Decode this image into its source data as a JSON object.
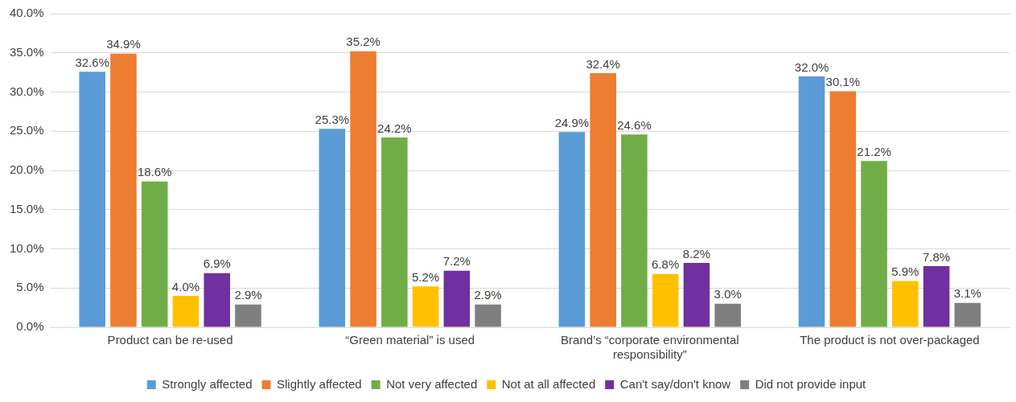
{
  "chart_data": {
    "type": "bar",
    "categories": [
      "Product can be re-used",
      "“Green material” is used",
      "Brand’s “corporate environmental responsibility”",
      "The product is not over-packaged"
    ],
    "series": [
      {
        "name": "Strongly affected",
        "color": "#5b9bd5",
        "values": [
          32.6,
          25.3,
          24.9,
          32.0
        ],
        "value_labels": [
          "32.6%",
          "25.3%",
          "24.9%",
          "32.0%"
        ]
      },
      {
        "name": "Slightly affected",
        "color": "#ed7d31",
        "values": [
          34.9,
          35.2,
          32.4,
          30.1
        ],
        "value_labels": [
          "34.9%",
          "35.2%",
          "32.4%",
          "30.1%"
        ]
      },
      {
        "name": "Not very affected",
        "color": "#70ad47",
        "values": [
          18.6,
          24.2,
          24.6,
          21.2
        ],
        "value_labels": [
          "18.6%",
          "24.2%",
          "24.6%",
          "21.2%"
        ]
      },
      {
        "name": "Not at all affected",
        "color": "#ffc000",
        "values": [
          4.0,
          5.2,
          6.8,
          5.9
        ],
        "value_labels": [
          "4.0%",
          "5.2%",
          "6.8%",
          "5.9%"
        ]
      },
      {
        "name": "Can't say/don't know",
        "color": "#7030a0",
        "values": [
          6.9,
          7.2,
          8.2,
          7.8
        ],
        "value_labels": [
          "6.9%",
          "7.2%",
          "8.2%",
          "7.8%"
        ]
      },
      {
        "name": "Did not provide input",
        "color": "#7f7f7f",
        "values": [
          2.9,
          2.9,
          3.0,
          3.1
        ],
        "value_labels": [
          "2.9%",
          "2.9%",
          "3.0%",
          "3.1%"
        ]
      }
    ],
    "ylim": [
      0,
      40
    ],
    "yticks": [
      {
        "value": 0,
        "label": "0.0%"
      },
      {
        "value": 5,
        "label": "5.0%"
      },
      {
        "value": 10,
        "label": "10.0%"
      },
      {
        "value": 15,
        "label": "15.0%"
      },
      {
        "value": 20,
        "label": "20.0%"
      },
      {
        "value": 25,
        "label": "25.0%"
      },
      {
        "value": 30,
        "label": "30.0%"
      },
      {
        "value": 35,
        "label": "35.0%"
      },
      {
        "value": 40,
        "label": "40.0%"
      }
    ],
    "grid": "y",
    "legend": "bottom"
  }
}
